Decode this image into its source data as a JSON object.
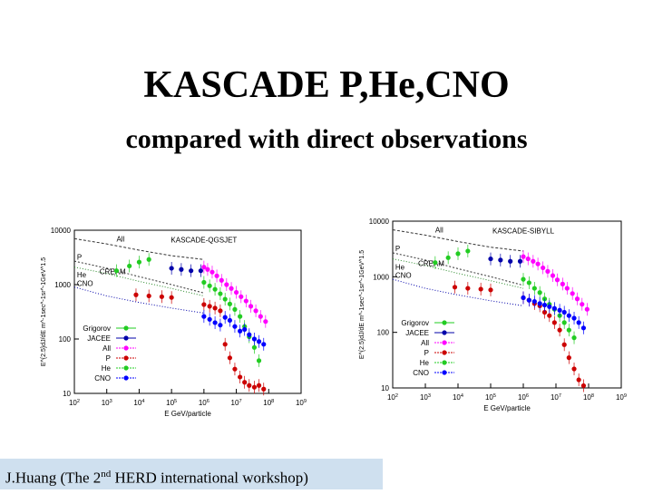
{
  "slide": {
    "title": "KASCADE   P,He,CNO",
    "subtitle": "compared with direct observations",
    "footer_author": "J.Huang (The  2",
    "footer_sup": "nd",
    "footer_rest": "  HERD international workshop)"
  },
  "chart_data": [
    {
      "type": "scatter",
      "title": "KASCADE-QGSJET",
      "xlabel": "E GeV/particle",
      "ylabel": "E^{2.5}dJ/dE m^-1sec^-1sr^-1GeV^1.5",
      "xscale": "log",
      "yscale": "log",
      "xlim": [
        100,
        1000000000
      ],
      "ylim": [
        10,
        10000
      ],
      "x_ticks": [
        "10^2",
        "10^3",
        "10^4",
        "10^5",
        "10^6",
        "10^7",
        "10^8",
        "10^9"
      ],
      "y_ticks": [
        "10",
        "100",
        "1000",
        "10000"
      ],
      "curve_labels": [
        "All",
        "P",
        "CREAM",
        "He",
        "CNO"
      ],
      "legend_position": "bottom-left",
      "legend": [
        "Grigorov",
        "JACEE",
        "All",
        "P",
        "He",
        "CNO"
      ],
      "series": [
        {
          "name": "All",
          "color": "#ff00ff",
          "points": [
            [
              1000000,
              2100
            ],
            [
              1300000,
              1900
            ],
            [
              1800000,
              1700
            ],
            [
              2500000,
              1450
            ],
            [
              3500000,
              1200
            ],
            [
              5000000,
              1000
            ],
            [
              7000000,
              850
            ],
            [
              10000000,
              720
            ],
            [
              14000000,
              600
            ],
            [
              20000000,
              500
            ],
            [
              28000000,
              400
            ],
            [
              40000000,
              330
            ],
            [
              56000000,
              260
            ],
            [
              80000000,
              210
            ]
          ]
        },
        {
          "name": "P",
          "color": "#cc0000",
          "points": [
            [
              1000000,
              430
            ],
            [
              1500000,
              400
            ],
            [
              2200000,
              370
            ],
            [
              3200000,
              330
            ],
            [
              4500000,
              80
            ],
            [
              6300000,
              45
            ],
            [
              9000000,
              28
            ],
            [
              13000000,
              20
            ],
            [
              18000000,
              16
            ],
            [
              25000000,
              14
            ],
            [
              36000000,
              13
            ],
            [
              50000000,
              14
            ],
            [
              70000000,
              12
            ]
          ]
        },
        {
          "name": "He",
          "color": "#22cc22",
          "points": [
            [
              1000000,
              1100
            ],
            [
              1500000,
              950
            ],
            [
              2200000,
              820
            ],
            [
              3200000,
              680
            ],
            [
              4500000,
              540
            ],
            [
              6300000,
              440
            ],
            [
              9000000,
              350
            ],
            [
              13000000,
              260
            ],
            [
              18000000,
              170
            ],
            [
              25000000,
              110
            ],
            [
              36000000,
              70
            ],
            [
              50000000,
              40
            ]
          ]
        },
        {
          "name": "CNO",
          "color": "#0000ff",
          "points": [
            [
              1000000,
              260
            ],
            [
              1500000,
              230
            ],
            [
              2200000,
              200
            ],
            [
              3200000,
              180
            ],
            [
              4500000,
              250
            ],
            [
              6300000,
              220
            ],
            [
              9000000,
              170
            ],
            [
              13000000,
              140
            ],
            [
              18000000,
              150
            ],
            [
              25000000,
              120
            ],
            [
              36000000,
              100
            ],
            [
              50000000,
              90
            ],
            [
              70000000,
              80
            ]
          ]
        },
        {
          "name": "Grigorov",
          "color": "#22cc22",
          "points": [
            [
              2000,
              1800
            ],
            [
              5000,
              2200
            ],
            [
              10000,
              2600
            ],
            [
              20000,
              2900
            ]
          ]
        },
        {
          "name": "JACEE",
          "color": "#0000aa",
          "points": [
            [
              100000,
              2000
            ],
            [
              200000,
              1900
            ],
            [
              400000,
              1800
            ],
            [
              800000,
              1800
            ]
          ]
        },
        {
          "name": "CREAM",
          "color": "#cc0000",
          "points": [
            [
              8000,
              650
            ],
            [
              20000,
              620
            ],
            [
              50000,
              600
            ],
            [
              100000,
              580
            ]
          ]
        }
      ]
    },
    {
      "type": "scatter",
      "title": "KASCADE-SIBYLL",
      "xlabel": "E GeV/particle",
      "ylabel": "E^{2.5}dJ/dE m^-1sec^-1sr^-1GeV^1.5",
      "xscale": "log",
      "yscale": "log",
      "xlim": [
        100,
        1000000000
      ],
      "ylim": [
        10,
        10000
      ],
      "x_ticks": [
        "10^2",
        "10^3",
        "10^4",
        "10^5",
        "10^6",
        "10^7",
        "10^8",
        "10^9"
      ],
      "y_ticks": [
        "10",
        "100",
        "1000",
        "10000"
      ],
      "curve_labels": [
        "All",
        "P",
        "CREAM",
        "He",
        "CNO"
      ],
      "legend_position": "bottom-left",
      "legend": [
        "Grigorov",
        "JACEE",
        "All",
        "P",
        "He",
        "CNO"
      ],
      "series": [
        {
          "name": "All",
          "color": "#ff00ff",
          "points": [
            [
              1000000,
              2300
            ],
            [
              1400000,
              2100
            ],
            [
              2000000,
              1900
            ],
            [
              2800000,
              1700
            ],
            [
              4000000,
              1450
            ],
            [
              5600000,
              1250
            ],
            [
              8000000,
              1050
            ],
            [
              11000000,
              880
            ],
            [
              16000000,
              740
            ],
            [
              22000000,
              620
            ],
            [
              32000000,
              500
            ],
            [
              45000000,
              400
            ],
            [
              63000000,
              320
            ],
            [
              90000000,
              260
            ]
          ]
        },
        {
          "name": "P",
          "color": "#cc0000",
          "points": [
            [
              1000000,
              420
            ],
            [
              1500000,
              380
            ],
            [
              2200000,
              330
            ],
            [
              3200000,
              300
            ],
            [
              4500000,
              230
            ],
            [
              6300000,
              200
            ],
            [
              9000000,
              150
            ],
            [
              13000000,
              110
            ],
            [
              18000000,
              60
            ],
            [
              25000000,
              35
            ],
            [
              36000000,
              22
            ],
            [
              50000000,
              14
            ],
            [
              70000000,
              11
            ]
          ]
        },
        {
          "name": "He",
          "color": "#22cc22",
          "points": [
            [
              1000000,
              900
            ],
            [
              1500000,
              780
            ],
            [
              2200000,
              620
            ],
            [
              3200000,
              520
            ],
            [
              4500000,
              400
            ],
            [
              6300000,
              320
            ],
            [
              9000000,
              260
            ],
            [
              13000000,
              200
            ],
            [
              18000000,
              150
            ],
            [
              25000000,
              110
            ],
            [
              36000000,
              80
            ]
          ]
        },
        {
          "name": "CNO",
          "color": "#0000ff",
          "points": [
            [
              1000000,
              420
            ],
            [
              1500000,
              380
            ],
            [
              2200000,
              360
            ],
            [
              3200000,
              330
            ],
            [
              4500000,
              310
            ],
            [
              6300000,
              290
            ],
            [
              9000000,
              270
            ],
            [
              13000000,
              250
            ],
            [
              18000000,
              230
            ],
            [
              25000000,
              200
            ],
            [
              36000000,
              180
            ],
            [
              50000000,
              150
            ],
            [
              70000000,
              120
            ]
          ]
        },
        {
          "name": "Grigorov",
          "color": "#22cc22",
          "points": [
            [
              2000,
              1800
            ],
            [
              5000,
              2200
            ],
            [
              10000,
              2600
            ],
            [
              20000,
              2900
            ]
          ]
        },
        {
          "name": "JACEE",
          "color": "#0000aa",
          "points": [
            [
              100000,
              2100
            ],
            [
              200000,
              2000
            ],
            [
              400000,
              1900
            ],
            [
              800000,
              1900
            ]
          ]
        },
        {
          "name": "CREAM",
          "color": "#cc0000",
          "points": [
            [
              8000,
              650
            ],
            [
              20000,
              620
            ],
            [
              50000,
              600
            ],
            [
              100000,
              580
            ]
          ]
        }
      ]
    }
  ]
}
